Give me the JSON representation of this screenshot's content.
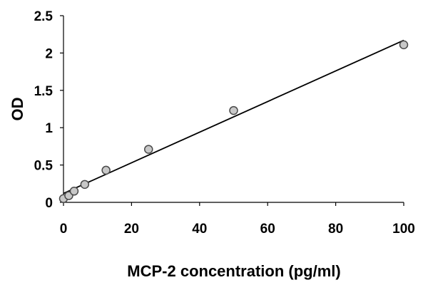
{
  "chart_data": {
    "type": "scatter",
    "title": "",
    "xlabel": "MCP-2 concentration (pg/ml)",
    "ylabel": "OD",
    "xlim": [
      0,
      100
    ],
    "ylim": [
      0,
      2.5
    ],
    "x_ticks": [
      "0",
      "20",
      "40",
      "60",
      "80",
      "100"
    ],
    "y_ticks": [
      "0",
      "0.5",
      "1",
      "1.5",
      "2",
      "2.5"
    ],
    "grid": false,
    "legend": "none",
    "series": [
      {
        "points": [
          {
            "x": 0,
            "y": 0.05
          },
          {
            "x": 1.56,
            "y": 0.09
          },
          {
            "x": 3.13,
            "y": 0.15
          },
          {
            "x": 6.25,
            "y": 0.24
          },
          {
            "x": 12.5,
            "y": 0.43
          },
          {
            "x": 25,
            "y": 0.71
          },
          {
            "x": 50,
            "y": 1.23
          },
          {
            "x": 100,
            "y": 2.11
          }
        ]
      }
    ],
    "trendline": {
      "type": "linear",
      "x": [
        0,
        100
      ],
      "y": [
        0.12,
        2.17
      ]
    },
    "colors": {
      "axis": "#000000",
      "marker_fill": "#c8c8c8",
      "marker_stroke": "#4a4a4a",
      "line": "#000000"
    }
  }
}
